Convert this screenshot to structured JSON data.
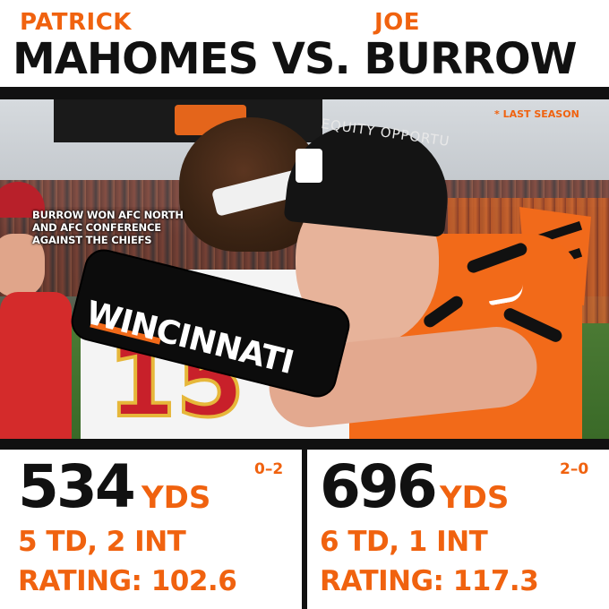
{
  "colors": {
    "accent": "#f0620f",
    "text_dark": "#111111",
    "background": "#ffffff"
  },
  "header": {
    "left_first_name": "PATRICK",
    "right_first_name": "JOE",
    "matchup_title": "MAHOMES VS. BURROW"
  },
  "photo": {
    "season_note": "* LAST SEASON",
    "caption": "BURROW WON AFC NORTH AND AFC CONFERENCE AGAINST THE CHIEFS",
    "sleeve_text": "WINCINNATI",
    "beanie_text": "EQUITY OPPORTU",
    "jersey_number": "15"
  },
  "stats": {
    "left": {
      "yards": "534",
      "yards_unit": "YDS",
      "record": "0–2",
      "td_int": "5 TD, 2 INT",
      "rating": "RATING: 102.6"
    },
    "right": {
      "yards": "696",
      "yards_unit": "YDS",
      "record": "2–0",
      "td_int": "6 TD, 1 INT",
      "rating": "RATING: 117.3"
    }
  }
}
